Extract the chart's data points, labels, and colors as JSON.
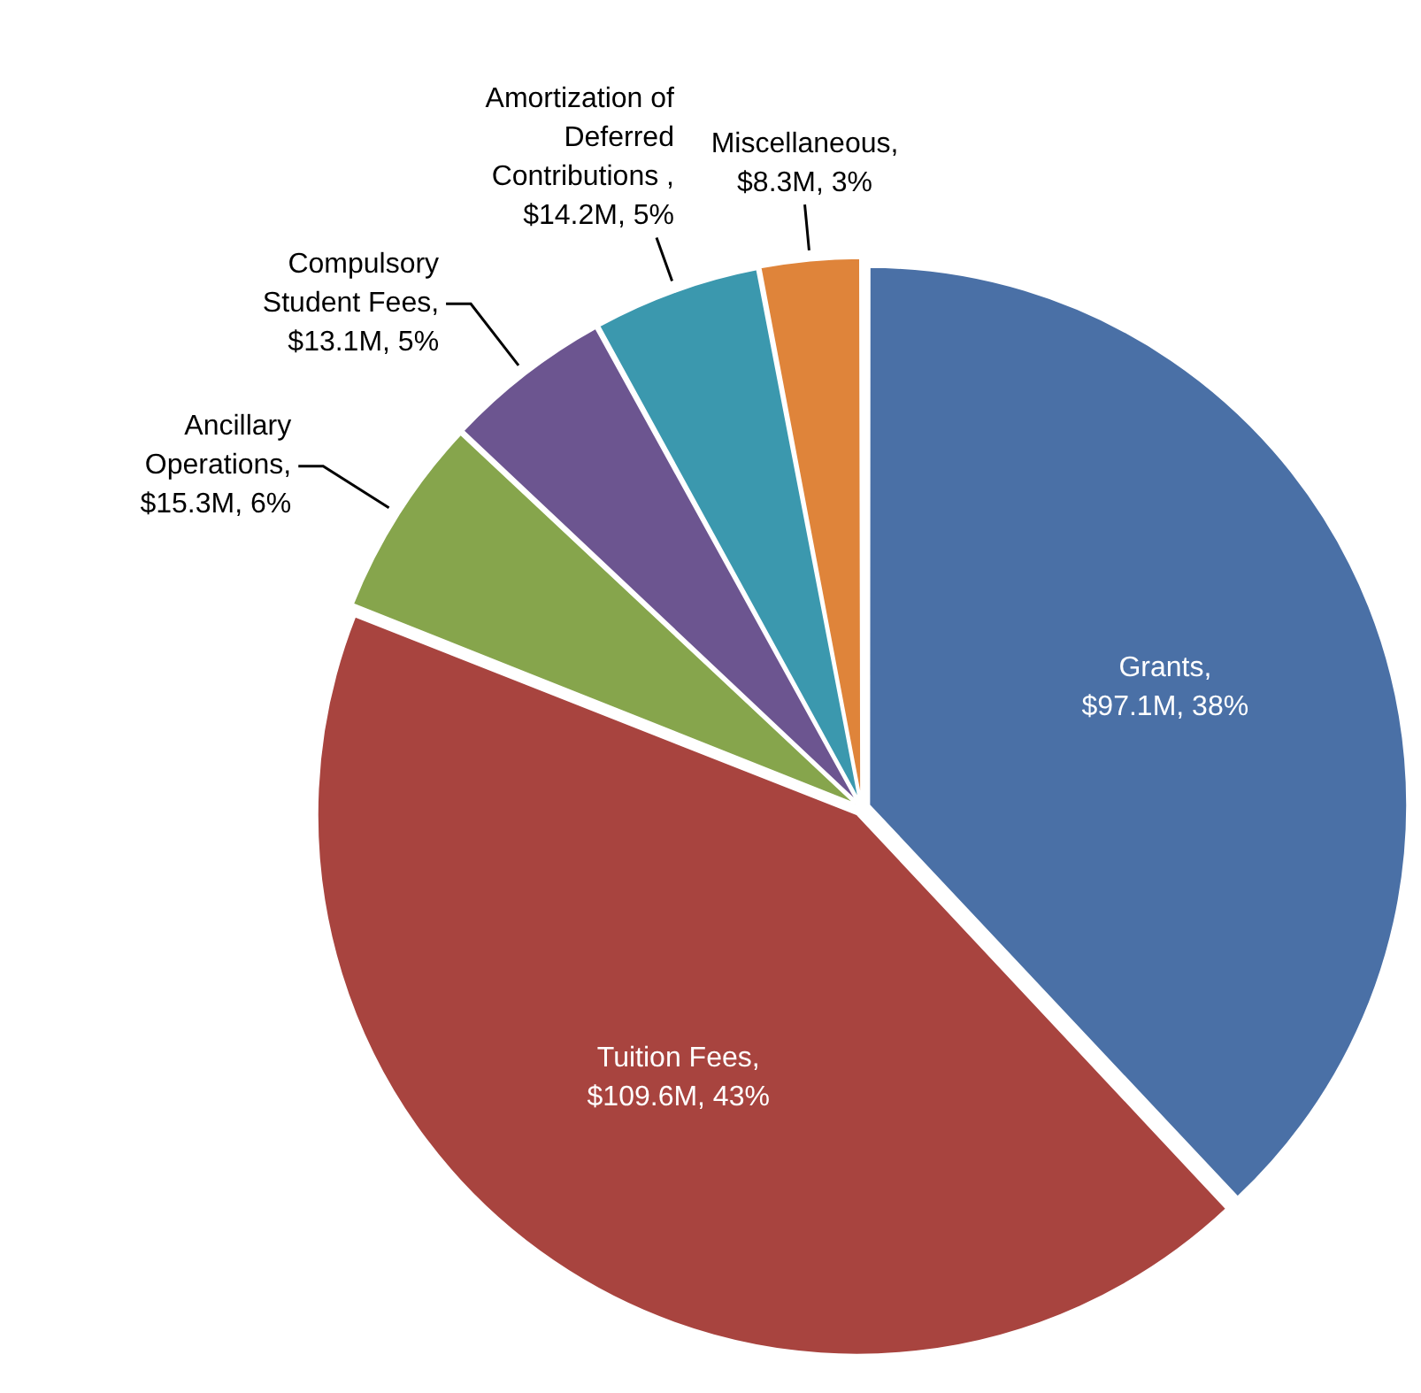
{
  "chart_data": {
    "type": "pie",
    "categories": [
      "Grants",
      "Tuition Fees",
      "Ancillary Operations",
      "Compulsory Student Fees",
      "Amortization of Deferred Contributions ",
      "Miscellaneous"
    ],
    "values": [
      38,
      43,
      6,
      5,
      5,
      3
    ],
    "value_labels": [
      ", $97.1M, 38%",
      ", $109.6M, 43%",
      ", $15.3M, 6%",
      ", $13.1M, 5%",
      ", $14.2M, 5%",
      ", $8.3M, 3%"
    ],
    "colors": [
      "#4a70a6",
      "#a8443f",
      "#86a54c",
      "#6c5590",
      "#3b98ae",
      "#df843a"
    ],
    "legend": false
  }
}
